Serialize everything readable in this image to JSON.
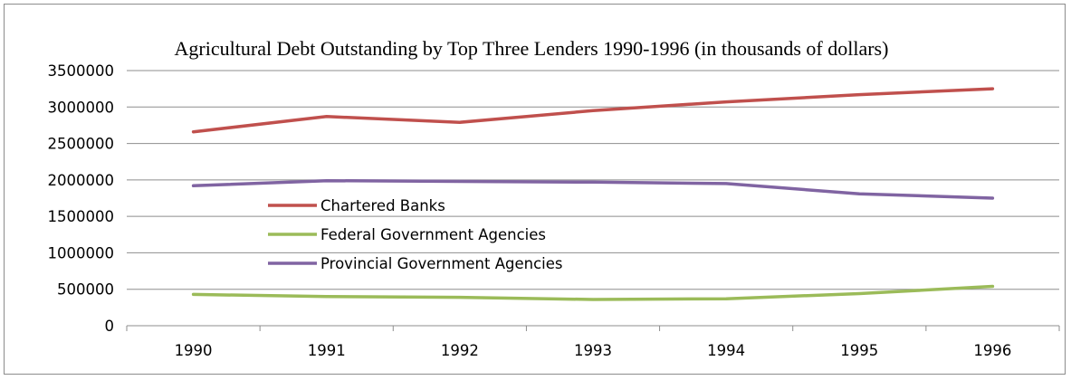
{
  "chart_data": {
    "type": "line",
    "title": "Agricultural Debt Outstanding by Top Three Lenders 1990-1996  (in thousands of dollars)",
    "xlabel": "",
    "ylabel": "",
    "categories": [
      "1990",
      "1991",
      "1992",
      "1993",
      "1994",
      "1995",
      "1996"
    ],
    "ylim": [
      0,
      3500000
    ],
    "yticks": [
      "0",
      "500000",
      "1000000",
      "1500000",
      "2000000",
      "2500000",
      "3000000",
      "3500000"
    ],
    "grid": true,
    "legend_position": "center-left",
    "series": [
      {
        "name": "Chartered Banks",
        "color": "#c0504d",
        "values": [
          2660000,
          2870000,
          2790000,
          2950000,
          3070000,
          3170000,
          3250000
        ]
      },
      {
        "name": "Federal Government Agencies",
        "color": "#9bbb59",
        "values": [
          430000,
          400000,
          390000,
          360000,
          370000,
          440000,
          540000
        ]
      },
      {
        "name": "Provincial Government Agencies",
        "color": "#8064a2",
        "values": [
          1920000,
          1990000,
          1980000,
          1970000,
          1950000,
          1810000,
          1750000
        ]
      }
    ]
  }
}
